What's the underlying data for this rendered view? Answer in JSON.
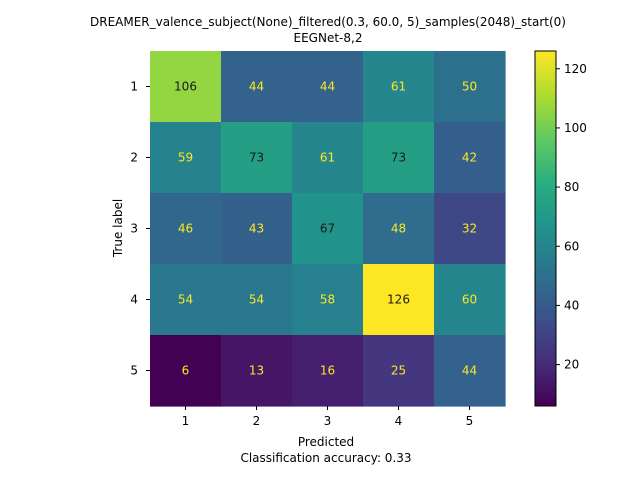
{
  "chart_data": {
    "type": "heatmap",
    "title": "DREAMER_valence_subject(None)_filtered(0.3, 60.0, 5)_samples(2048)_start(0)",
    "subtitle": "EEGNet-8,2",
    "xlabel": "Predicted",
    "ylabel": "True label",
    "footer": "Classification accuracy: 0.33",
    "x_categories": [
      "1",
      "2",
      "3",
      "4",
      "5"
    ],
    "y_categories": [
      "1",
      "2",
      "3",
      "4",
      "5"
    ],
    "matrix": [
      [
        106,
        44,
        44,
        61,
        50
      ],
      [
        59,
        73,
        61,
        73,
        42
      ],
      [
        46,
        43,
        67,
        48,
        32
      ],
      [
        54,
        54,
        58,
        126,
        60
      ],
      [
        6,
        13,
        16,
        25,
        44
      ]
    ],
    "colorbar": {
      "min": 6,
      "max": 126,
      "ticks": [
        20,
        40,
        60,
        80,
        100,
        120
      ]
    },
    "colormap": "viridis",
    "text_colors": {
      "light": "#fde725",
      "dark": "#1a1a1a"
    },
    "grid": false
  }
}
